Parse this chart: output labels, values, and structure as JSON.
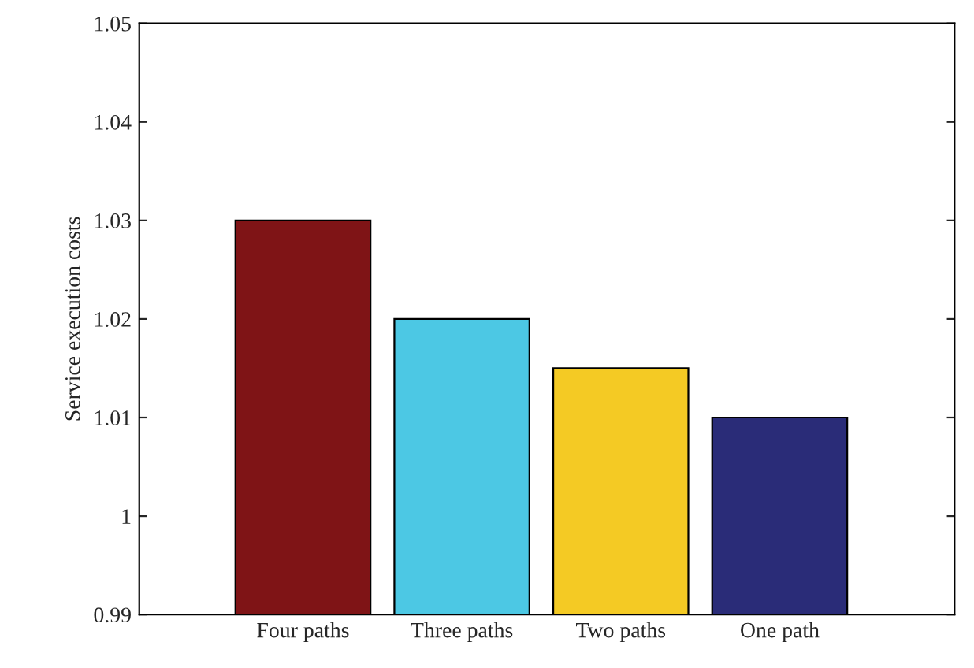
{
  "chart_data": {
    "type": "bar",
    "ylabel": "Service execution costs",
    "categories": [
      "Four paths",
      "Three paths",
      "Two paths",
      "One path"
    ],
    "values": [
      1.03,
      1.02,
      1.015,
      1.01
    ],
    "colors": [
      "#7f1416",
      "#4cc8e4",
      "#f4ca24",
      "#2a2c78"
    ],
    "ylim": [
      0.99,
      1.05
    ],
    "yticks": [
      0.99,
      1,
      1.01,
      1.02,
      1.03,
      1.04,
      1.05
    ],
    "grid": false
  }
}
